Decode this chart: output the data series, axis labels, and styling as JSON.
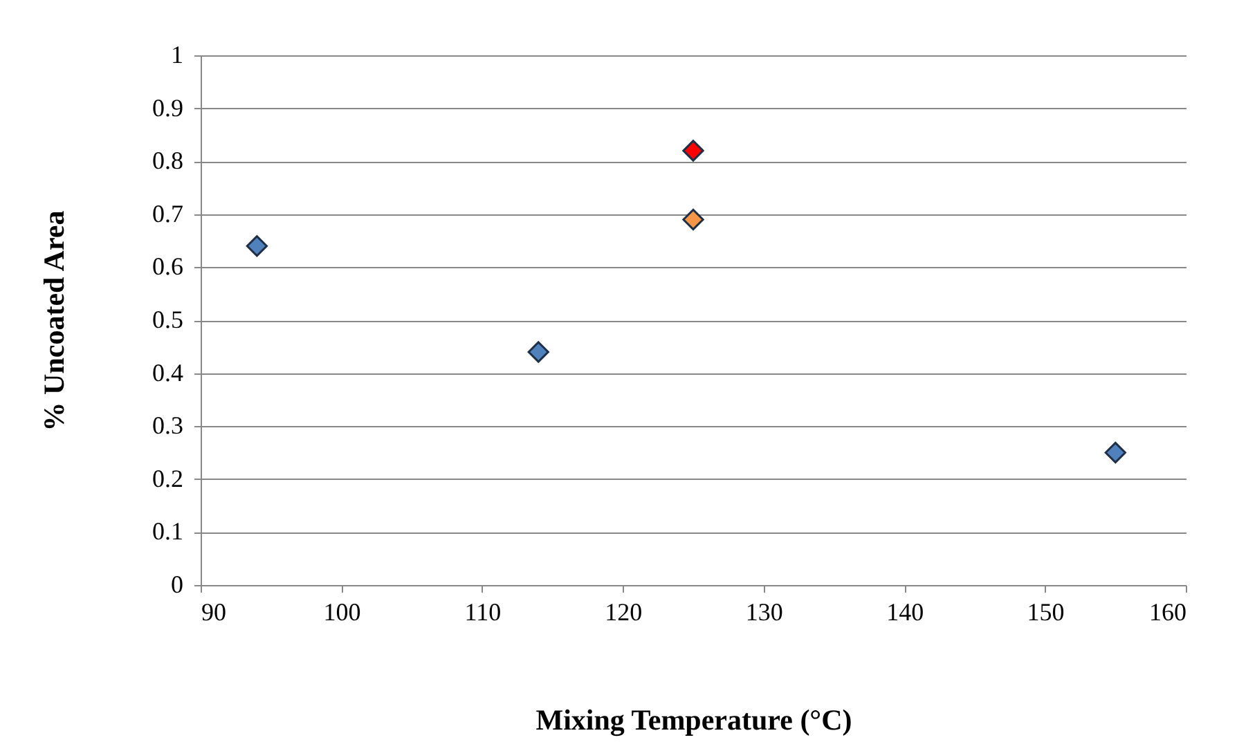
{
  "chart_data": {
    "type": "scatter",
    "xlabel": "Mixing Temperature (°C)",
    "ylabel": "% Uncoated Area",
    "xlim": [
      90,
      160
    ],
    "xticks": [
      90,
      100,
      110,
      120,
      130,
      140,
      150,
      160
    ],
    "ylim": [
      0,
      1
    ],
    "yticks": [
      0,
      0.1,
      0.2,
      0.3,
      0.4,
      0.5,
      0.6,
      0.7,
      0.8,
      0.9,
      1
    ],
    "grid": "y",
    "legend": false,
    "marker": "diamond",
    "series": [
      {
        "color": "#4f81bd",
        "x": [
          94,
          114,
          155
        ],
        "values": [
          0.64,
          0.44,
          0.25
        ]
      },
      {
        "color": "#f79646",
        "x": [
          125
        ],
        "values": [
          0.69
        ]
      },
      {
        "color": "#ff0000",
        "x": [
          125
        ],
        "values": [
          0.82
        ]
      }
    ]
  }
}
